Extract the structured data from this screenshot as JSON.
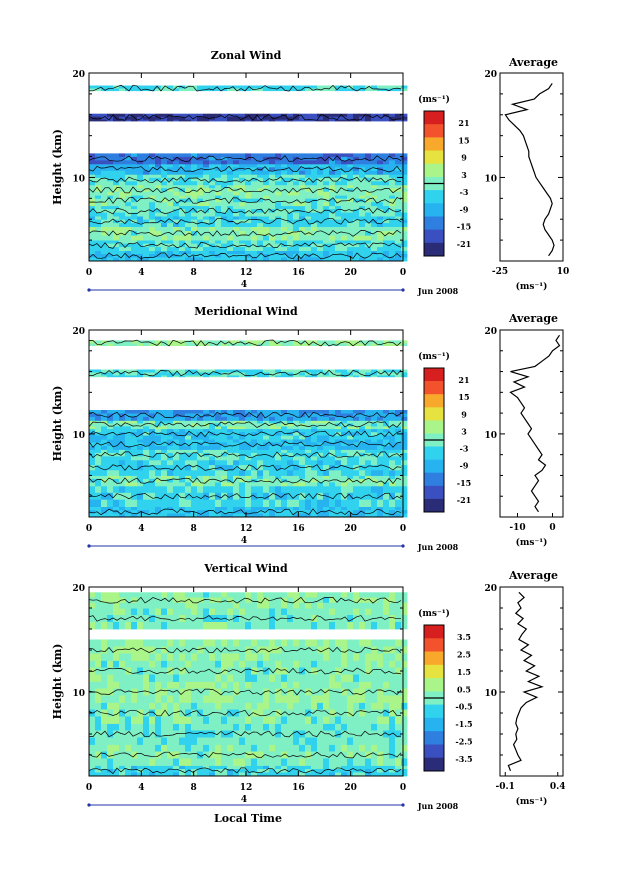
{
  "x_axis_label": "Local Time",
  "date_label": "Jun 2008",
  "day_marker": "4",
  "colorbar_unit": "(ms⁻¹)",
  "profile_unit": "(ms⁻¹)",
  "palette": [
    "#2b2c77",
    "#3a50c0",
    "#2f7fe0",
    "#27b2f0",
    "#30d2ee",
    "#7ff0c4",
    "#aaf58a",
    "#e6e240",
    "#f8a82a",
    "#f2532c",
    "#d81f1f"
  ],
  "chart_data": [
    {
      "type": "heatmap",
      "title": "Zonal Wind",
      "xlabel": "",
      "ylabel": "Height (km)",
      "x_ticks": [
        "0",
        "4",
        "8",
        "12",
        "16",
        "20",
        "0"
      ],
      "y_ticks": [
        "10",
        "20"
      ],
      "xlim": [
        0,
        24
      ],
      "ylim": [
        2,
        20
      ],
      "colorbar_ticks": [
        "21",
        "15",
        "9",
        "3",
        "-3",
        "-9",
        "-15",
        "-21"
      ],
      "colorbar_range": [
        -24,
        24
      ],
      "bands": [
        {
          "y0": 2,
          "y1": 3,
          "v": -6
        },
        {
          "y0": 3,
          "y1": 4,
          "v": -3
        },
        {
          "y0": 4,
          "y1": 5.3,
          "v": 1
        },
        {
          "y0": 5.3,
          "y1": 6.3,
          "v": -4
        },
        {
          "y0": 6.3,
          "y1": 7.3,
          "v": -2
        },
        {
          "y0": 7.3,
          "y1": 8.3,
          "v": 0
        },
        {
          "y0": 8.3,
          "y1": 9.3,
          "v": 1
        },
        {
          "y0": 9.3,
          "y1": 10.3,
          "v": -2
        },
        {
          "y0": 10.3,
          "y1": 11.3,
          "v": -8
        },
        {
          "y0": 11.3,
          "y1": 12.3,
          "v": -14
        },
        {
          "y0": 15.4,
          "y1": 16.1,
          "v": -20
        },
        {
          "y0": 18.3,
          "y1": 18.8,
          "v": -3
        }
      ],
      "profile": {
        "xlim": [
          -25,
          10
        ],
        "x_ticks": [
          "-25",
          "10"
        ],
        "y_ticks": [
          "10",
          "20"
        ],
        "title": "Average",
        "z": [
          2.5,
          3,
          3.5,
          4,
          4.5,
          5,
          5.5,
          6,
          6.5,
          7,
          7.5,
          8,
          8.5,
          9,
          9.5,
          10,
          10.5,
          11,
          11.5,
          12,
          12.5,
          13,
          13.5,
          14,
          14.5,
          15,
          15.5,
          16,
          16.5,
          17,
          17.5,
          18,
          18.5,
          19
        ],
        "u": [
          2,
          4,
          5,
          4,
          2,
          0,
          -1,
          0,
          2,
          3,
          4,
          3,
          1,
          -1,
          -3,
          -5,
          -6,
          -7,
          -8,
          -9,
          -9,
          -10,
          -11,
          -12,
          -14,
          -17,
          -20,
          -22,
          -10,
          -18,
          -6,
          -3,
          2,
          4
        ]
      }
    },
    {
      "type": "heatmap",
      "title": "Meridional Wind",
      "xlabel": "",
      "ylabel": "Height (km)",
      "x_ticks": [
        "0",
        "4",
        "8",
        "12",
        "16",
        "20",
        "0"
      ],
      "y_ticks": [
        "10",
        "20"
      ],
      "xlim": [
        0,
        24
      ],
      "ylim": [
        2,
        20
      ],
      "colorbar_ticks": [
        "21",
        "15",
        "9",
        "3",
        "-3",
        "-9",
        "-15",
        "-21"
      ],
      "colorbar_range": [
        -24,
        24
      ],
      "bands": [
        {
          "y0": 2,
          "y1": 3,
          "v": -6
        },
        {
          "y0": 3,
          "y1": 5,
          "v": -4
        },
        {
          "y0": 5,
          "y1": 6,
          "v": 0
        },
        {
          "y0": 6,
          "y1": 7.5,
          "v": -4
        },
        {
          "y0": 7.5,
          "y1": 8.5,
          "v": -3
        },
        {
          "y0": 8.5,
          "y1": 9.5,
          "v": -7
        },
        {
          "y0": 9.5,
          "y1": 10.5,
          "v": -5
        },
        {
          "y0": 10.5,
          "y1": 11.3,
          "v": 0
        },
        {
          "y0": 11.3,
          "y1": 12.3,
          "v": -10
        },
        {
          "y0": 15.5,
          "y1": 16.2,
          "v": -2
        },
        {
          "y0": 18.5,
          "y1": 19,
          "v": 2
        }
      ],
      "profile": {
        "xlim": [
          -15,
          3
        ],
        "x_ticks": [
          "-10",
          "0"
        ],
        "y_ticks": [
          "10",
          "20"
        ],
        "title": "Average",
        "z": [
          2.5,
          3,
          3.5,
          4,
          4.5,
          5,
          5.5,
          6,
          6.5,
          7,
          7.5,
          8,
          8.5,
          9,
          9.5,
          10,
          10.5,
          11,
          11.5,
          12,
          12.5,
          13,
          13.5,
          14,
          14.5,
          15,
          15.5,
          16,
          16.5,
          17,
          17.5,
          18,
          18.5,
          19,
          19.5
        ],
        "u": [
          -4,
          -5,
          -4,
          -5,
          -6,
          -5,
          -4,
          -5,
          -3,
          -2,
          -4,
          -3,
          -4,
          -5,
          -6,
          -7,
          -6,
          -7,
          -8,
          -9,
          -8,
          -9,
          -10,
          -12,
          -8,
          -11,
          -7,
          -12,
          -5,
          -3,
          -1,
          0,
          2,
          1,
          2
        ]
      }
    },
    {
      "type": "heatmap",
      "title": "Vertical Wind",
      "xlabel": "Local Time",
      "ylabel": "Height (km)",
      "x_ticks": [
        "0",
        "4",
        "8",
        "12",
        "16",
        "20",
        "0"
      ],
      "y_ticks": [
        "10",
        "20"
      ],
      "xlim": [
        0,
        24
      ],
      "ylim": [
        2,
        20
      ],
      "colorbar_ticks": [
        "3.5",
        "2.5",
        "1.5",
        "0.5",
        "-0.5",
        "-1.5",
        "-2.5",
        "-3.5"
      ],
      "colorbar_range": [
        -4,
        4
      ],
      "bands": [
        {
          "y0": 2,
          "y1": 3,
          "v": -0.6
        },
        {
          "y0": 3,
          "y1": 5,
          "v": 0.1
        },
        {
          "y0": 5,
          "y1": 7,
          "v": -0.2
        },
        {
          "y0": 7,
          "y1": 9,
          "v": 0.1
        },
        {
          "y0": 9,
          "y1": 11,
          "v": 0.3
        },
        {
          "y0": 11,
          "y1": 13,
          "v": 0.1
        },
        {
          "y0": 13,
          "y1": 15,
          "v": 0.2
        },
        {
          "y0": 16,
          "y1": 18,
          "v": 0.1
        },
        {
          "y0": 18,
          "y1": 19.5,
          "v": 0.2
        }
      ],
      "profile": {
        "xlim": [
          -0.15,
          0.45
        ],
        "x_ticks": [
          "-0.1",
          "0.4"
        ],
        "y_ticks": [
          "10",
          "20"
        ],
        "title": "Average",
        "z": [
          2.5,
          3,
          3.5,
          4,
          4.5,
          5,
          5.5,
          6,
          6.5,
          7,
          7.5,
          8,
          8.5,
          9,
          9.5,
          10,
          10.5,
          11,
          11.5,
          12,
          12.5,
          13,
          13.5,
          14,
          14.5,
          15,
          15.5,
          16,
          16.5,
          17,
          17.5,
          18,
          18.5,
          19,
          19.5
        ],
        "u": [
          -0.05,
          -0.07,
          0.05,
          0.02,
          0.0,
          -0.02,
          0.01,
          0.0,
          0.02,
          0.0,
          0.01,
          0.03,
          0.05,
          0.1,
          0.2,
          0.08,
          0.25,
          0.12,
          0.22,
          0.1,
          0.18,
          0.08,
          0.15,
          0.05,
          0.12,
          0.03,
          0.06,
          0.1,
          0.02,
          0.07,
          0.0,
          0.05,
          0.02,
          0.08,
          0.03
        ]
      }
    }
  ]
}
